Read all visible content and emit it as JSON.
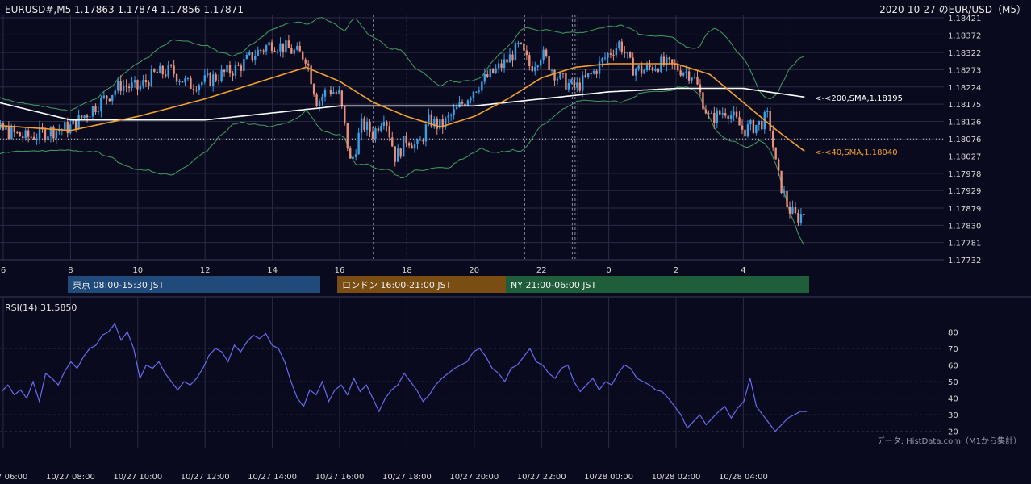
{
  "header": {
    "symbol_ohlc": "EURUSD#,M5 1.17863 1.17874 1.17856 1.17871",
    "title": "2020-10-27 のEUR/USD（M5）"
  },
  "sessions": [
    {
      "label": "東京 08:00-15:30 JST",
      "color": "#1f4a7a"
    },
    {
      "label": "ロンドン 16:00-21:00 JST",
      "color": "#7a4e12"
    },
    {
      "label": "NY 21:00-06:00 JST",
      "color": "#1f5e3a"
    }
  ],
  "colors": {
    "background": "#0a0a1e",
    "grid": "#2a2a45",
    "bull": "#3aa0e8",
    "bear": "#e8907a",
    "sma200": "#ffffff",
    "sma40": "#f0a030",
    "bollinger": "#3fa060",
    "rsi": "#6a6af0"
  },
  "annotations": {
    "sma200": "<-<200,SMA,1.18195",
    "sma40": "<-<40,SMA,1.18040"
  },
  "rsi_label": "RSI(14) 31.5850",
  "footer_note": "データ: HistData.com（M1から集計）",
  "chart_data": [
    {
      "type": "candlestick",
      "title": "2020-10-27 のEUR/USD（M5）",
      "x_ticks": [
        "6",
        "8",
        "10",
        "12",
        "14",
        "16",
        "18",
        "20",
        "22",
        "0",
        "2",
        "4"
      ],
      "y_ticks": [
        "1.18421",
        "1.18372",
        "1.18322",
        "1.18273",
        "1.18224",
        "1.18175",
        "1.18126",
        "1.18076",
        "1.18027",
        "1.17978",
        "1.17929",
        "1.17879",
        "1.17830",
        "1.17781",
        "1.17732"
      ],
      "ylim": [
        1.17732,
        1.18421
      ],
      "reference_price": 1.18076,
      "session_markers": [
        "17:00",
        "18:00",
        "21:30",
        "22:55",
        "23:00",
        "23:05",
        "05:25"
      ],
      "series": [
        {
          "name": "Price",
          "price_path": [
            [
              "05:00",
              1.1809
            ],
            [
              "06:00",
              1.181
            ],
            [
              "06:40",
              1.1808
            ],
            [
              "07:30",
              1.181
            ],
            [
              "08:00",
              1.1811
            ],
            [
              "08:30",
              1.1815
            ],
            [
              "09:00",
              1.1819
            ],
            [
              "09:30",
              1.1823
            ],
            [
              "10:00",
              1.1822
            ],
            [
              "10:30",
              1.1826
            ],
            [
              "11:00",
              1.1827
            ],
            [
              "11:30",
              1.1823
            ],
            [
              "12:00",
              1.1824
            ],
            [
              "12:30",
              1.1826
            ],
            [
              "13:00",
              1.1828
            ],
            [
              "13:30",
              1.1832
            ],
            [
              "14:00",
              1.1835
            ],
            [
              "14:30",
              1.1833
            ],
            [
              "15:00",
              1.1831
            ],
            [
              "15:20",
              1.1818
            ],
            [
              "15:40",
              1.1822
            ],
            [
              "16:00",
              1.182
            ],
            [
              "16:20",
              1.18
            ],
            [
              "16:40",
              1.1812
            ],
            [
              "17:00",
              1.1809
            ],
            [
              "17:20",
              1.1815
            ],
            [
              "17:40",
              1.1802
            ],
            [
              "18:00",
              1.1808
            ],
            [
              "18:20",
              1.1805
            ],
            [
              "18:40",
              1.1813
            ],
            [
              "19:00",
              1.1811
            ],
            [
              "19:30",
              1.1816
            ],
            [
              "20:00",
              1.1822
            ],
            [
              "20:30",
              1.1826
            ],
            [
              "21:00",
              1.183
            ],
            [
              "21:20",
              1.1834
            ],
            [
              "21:40",
              1.1828
            ],
            [
              "22:00",
              1.1832
            ],
            [
              "22:30",
              1.1825
            ],
            [
              "23:00",
              1.1822
            ],
            [
              "23:30",
              1.1826
            ],
            [
              "00:00",
              1.1832
            ],
            [
              "00:20",
              1.1835
            ],
            [
              "00:40",
              1.1828
            ],
            [
              "01:00",
              1.1827
            ],
            [
              "01:30",
              1.1829
            ],
            [
              "02:00",
              1.1828
            ],
            [
              "02:30",
              1.1826
            ],
            [
              "03:00",
              1.1813
            ],
            [
              "03:30",
              1.1816
            ],
            [
              "04:00",
              1.181
            ],
            [
              "04:30",
              1.1812
            ],
            [
              "04:45",
              1.1814
            ],
            [
              "05:00",
              1.1798
            ],
            [
              "05:20",
              1.1788
            ],
            [
              "05:35",
              1.1785
            ],
            [
              "05:50",
              1.1787
            ]
          ]
        },
        {
          "name": "200,SMA",
          "price_path": [
            [
              "05:00",
              1.182
            ],
            [
              "08:00",
              1.1813
            ],
            [
              "12:00",
              1.1813
            ],
            [
              "16:00",
              1.1817
            ],
            [
              "20:00",
              1.1817
            ],
            [
              "00:00",
              1.1821
            ],
            [
              "02:00",
              1.1822
            ],
            [
              "04:00",
              1.1822
            ],
            [
              "05:50",
              1.18195
            ]
          ]
        },
        {
          "name": "40,SMA",
          "price_path": [
            [
              "05:00",
              1.1812
            ],
            [
              "08:00",
              1.181
            ],
            [
              "10:00",
              1.1814
            ],
            [
              "12:00",
              1.1819
            ],
            [
              "14:00",
              1.1825
            ],
            [
              "15:00",
              1.1828
            ],
            [
              "16:00",
              1.1824
            ],
            [
              "17:00",
              1.1818
            ],
            [
              "18:00",
              1.1814
            ],
            [
              "19:00",
              1.1811
            ],
            [
              "20:00",
              1.1814
            ],
            [
              "21:00",
              1.1819
            ],
            [
              "22:00",
              1.1825
            ],
            [
              "23:00",
              1.1828
            ],
            [
              "00:00",
              1.1829
            ],
            [
              "02:00",
              1.1829
            ],
            [
              "03:00",
              1.1826
            ],
            [
              "04:00",
              1.1818
            ],
            [
              "05:00",
              1.181
            ],
            [
              "05:50",
              1.1804
            ]
          ]
        }
      ]
    },
    {
      "type": "line",
      "title": "RSI(14) 31.5850",
      "ylim": [
        15,
        88
      ],
      "y_ticks": [
        80,
        70,
        60,
        50,
        40,
        30,
        20
      ],
      "x_ticks": [
        "10/27 06:00",
        "10/27 08:00",
        "10/27 10:00",
        "10/27 12:00",
        "10/27 14:00",
        "10/27 16:00",
        "10/27 18:00",
        "10/27 20:00",
        "10/27 22:00",
        "10/28 00:00",
        "10/28 02:00",
        "10/28 04:00"
      ],
      "series": [
        {
          "name": "RSI(14)",
          "values": [
            44,
            48,
            42,
            45,
            40,
            50,
            38,
            55,
            52,
            48,
            56,
            62,
            58,
            65,
            70,
            72,
            78,
            80,
            85,
            75,
            80,
            70,
            52,
            60,
            58,
            62,
            55,
            50,
            45,
            50,
            48,
            52,
            58,
            66,
            70,
            68,
            62,
            72,
            68,
            74,
            78,
            76,
            79,
            72,
            70,
            62,
            50,
            40,
            35,
            45,
            42,
            50,
            38,
            45,
            48,
            42,
            52,
            44,
            48,
            40,
            32,
            40,
            45,
            48,
            55,
            50,
            45,
            38,
            42,
            48,
            52,
            55,
            58,
            60,
            62,
            68,
            70,
            65,
            58,
            55,
            50,
            58,
            60,
            65,
            70,
            62,
            60,
            55,
            52,
            58,
            60,
            50,
            44,
            48,
            52,
            45,
            50,
            48,
            55,
            60,
            58,
            52,
            50,
            48,
            45,
            44,
            40,
            35,
            30,
            22,
            26,
            30,
            24,
            28,
            32,
            35,
            28,
            34,
            38,
            52,
            35,
            30,
            25,
            20,
            24,
            28,
            30,
            32,
            32
          ]
        }
      ]
    }
  ]
}
